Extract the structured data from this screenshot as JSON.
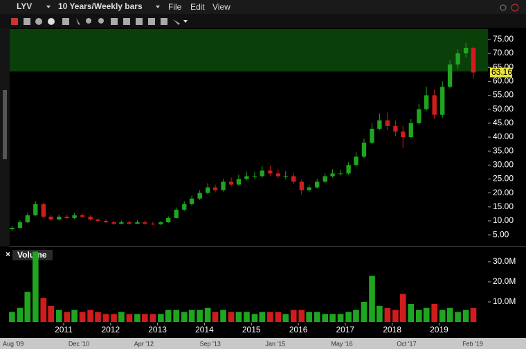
{
  "header": {
    "ticker": "LYV",
    "period": "10 Years/Weekly bars",
    "menu": [
      "File",
      "Edit",
      "View"
    ]
  },
  "chart_data": [
    {
      "type": "candlestick",
      "x": [
        2009.9,
        2010.07,
        2010.23,
        2010.4,
        2010.57,
        2010.73,
        2010.9,
        2011.07,
        2011.23,
        2011.4,
        2011.57,
        2011.73,
        2011.9,
        2012.07,
        2012.23,
        2012.4,
        2012.57,
        2012.73,
        2012.9,
        2013.07,
        2013.23,
        2013.4,
        2013.57,
        2013.73,
        2013.9,
        2014.07,
        2014.23,
        2014.4,
        2014.57,
        2014.73,
        2014.9,
        2015.07,
        2015.23,
        2015.4,
        2015.57,
        2015.73,
        2015.9,
        2016.07,
        2016.23,
        2016.4,
        2016.57,
        2016.73,
        2016.9,
        2017.07,
        2017.23,
        2017.4,
        2017.57,
        2017.73,
        2017.9,
        2018.07,
        2018.23,
        2018.4,
        2018.57,
        2018.73,
        2018.9,
        2019.07,
        2019.23,
        2019.4,
        2019.57,
        2019.73
      ],
      "open": [
        7,
        7.5,
        9.5,
        12,
        16,
        11.5,
        10.5,
        11.5,
        11,
        12,
        11.5,
        10.5,
        10,
        9.5,
        9,
        9.5,
        9,
        9.5,
        9,
        8.8,
        9.5,
        11,
        14,
        16,
        18,
        20,
        22,
        21,
        24,
        23,
        25,
        26,
        26,
        28,
        27,
        26,
        26,
        24,
        21,
        22,
        24,
        26,
        27,
        27,
        30,
        33,
        38,
        43,
        46,
        44,
        42,
        40,
        45,
        50,
        55,
        48,
        58,
        66,
        70,
        72
      ],
      "high": [
        8.2,
        10.3,
        12.8,
        17,
        16.5,
        12,
        12.3,
        12.2,
        12.8,
        12.6,
        12,
        11,
        10.6,
        10,
        10.1,
        10,
        10.2,
        10,
        9.6,
        10,
        11.6,
        14.8,
        17,
        19,
        21,
        23.5,
        23,
        25,
        25.5,
        26.5,
        27.5,
        27.5,
        29.5,
        29.8,
        28.5,
        27.8,
        27,
        24.8,
        23,
        25,
        27,
        28.5,
        28.3,
        31,
        34.5,
        39.5,
        45,
        48.5,
        48.8,
        46,
        44,
        46.5,
        52,
        58,
        57,
        60,
        67.5,
        71.5,
        73.8,
        72.5
      ],
      "low": [
        6.5,
        7.2,
        9.2,
        11.8,
        11,
        10,
        10.2,
        10.6,
        10.7,
        11,
        10.1,
        9.6,
        9.1,
        8.5,
        8.7,
        8.6,
        8.8,
        8.6,
        8.4,
        8.5,
        9.2,
        10.8,
        13.6,
        15.5,
        17.5,
        19.5,
        20.2,
        20.5,
        22.3,
        22.5,
        24.5,
        25,
        25.5,
        26.2,
        25.3,
        25,
        23.2,
        19.5,
        20.5,
        21.5,
        23.5,
        25.5,
        26.2,
        26.5,
        29.5,
        32.5,
        37.5,
        42.5,
        42.5,
        40.5,
        36,
        39.5,
        44.5,
        49.5,
        46.5,
        47,
        57.5,
        64.5,
        68.5,
        61
      ],
      "close": [
        7.5,
        9.5,
        12,
        16,
        11.5,
        10.5,
        11.5,
        11,
        12,
        11.5,
        10.5,
        10,
        9.5,
        9,
        9.5,
        9,
        9.5,
        9,
        8.8,
        9.5,
        11,
        14,
        16,
        18,
        20,
        22,
        21,
        24,
        23,
        25,
        26,
        26,
        28,
        27,
        26,
        26,
        24,
        21,
        22,
        24,
        26,
        27,
        27,
        30,
        33,
        38,
        43,
        46,
        44,
        42,
        40,
        45,
        50,
        55,
        48,
        58,
        66,
        70,
        72,
        63.16
      ],
      "up_color": "#1fa51f",
      "down_color": "#d01c1c",
      "xlim": [
        2009.85,
        2020.04
      ],
      "xticks": [
        2011,
        2012,
        2013,
        2014,
        2015,
        2016,
        2017,
        2018,
        2019
      ],
      "ylim": [
        1.8,
        78.7
      ],
      "yticks": [
        {
          "value": 5,
          "label": "5.00"
        },
        {
          "value": 10,
          "label": "10.00"
        },
        {
          "value": 15,
          "label": "15.00"
        },
        {
          "value": 20,
          "label": "20.00"
        },
        {
          "value": 25,
          "label": "25.00"
        },
        {
          "value": 30,
          "label": "30.00"
        },
        {
          "value": 35,
          "label": "35.00"
        },
        {
          "value": 40,
          "label": "40.00"
        },
        {
          "value": 45,
          "label": "45.00"
        },
        {
          "value": 50,
          "label": "50.00"
        },
        {
          "value": 55,
          "label": "55.00"
        },
        {
          "value": 60,
          "label": "60.00"
        },
        {
          "value": 65,
          "label": "65.00"
        },
        {
          "value": 70,
          "label": "70.00"
        },
        {
          "value": 75,
          "label": "75.00"
        }
      ],
      "highlight_range": [
        63.5,
        78.7
      ],
      "highlight_color": "#0c4a0c",
      "last_price_color": "#e8e23a"
    },
    {
      "type": "bar",
      "title": "Volume",
      "values": [
        5,
        7,
        15,
        35,
        12,
        8,
        6,
        5,
        6,
        5,
        6,
        5,
        4,
        4,
        5,
        4,
        4,
        4,
        4,
        4,
        6,
        6,
        5,
        6,
        6,
        7,
        5,
        6,
        5,
        5,
        5,
        4,
        5,
        5,
        5,
        4,
        6,
        6,
        5,
        5,
        4,
        4,
        4,
        5,
        6,
        10,
        23,
        8,
        7,
        6,
        14,
        9,
        6,
        7,
        9,
        6,
        7,
        5,
        6,
        7
      ],
      "ylim": [
        0,
        36.2
      ],
      "yticks": [
        {
          "value": 10,
          "label": "10.0M"
        },
        {
          "value": 20,
          "label": "20.0M"
        },
        {
          "value": 30,
          "label": "30.0M"
        }
      ]
    }
  ],
  "timeline": {
    "labels": [
      "Aug '09",
      "Dec '10",
      "Apr '12",
      "Sep '13",
      "Jan '15",
      "May '16",
      "Oct '17",
      "Feb '19"
    ]
  }
}
